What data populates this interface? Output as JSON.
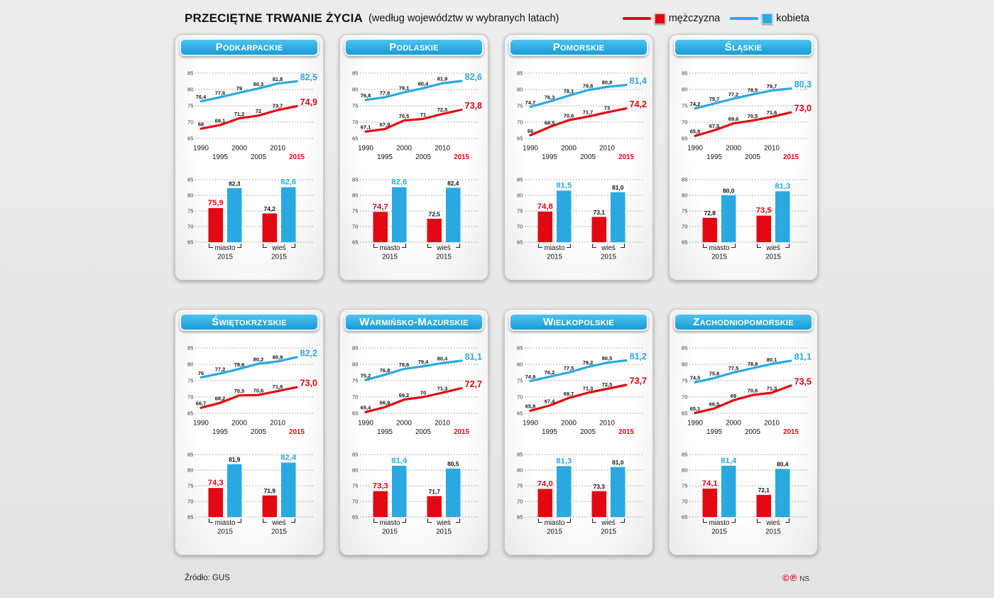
{
  "header": {
    "title": "PRZECIĘTNE TRWANIE ŻYCIA",
    "subtitle": "(według województw w wybranych latach)"
  },
  "legend": {
    "items": [
      {
        "key": "male",
        "label": "mężczyzna",
        "color": "#e30613"
      },
      {
        "key": "female",
        "label": "kobieta",
        "color": "#29a9e0"
      }
    ]
  },
  "colors": {
    "male": "#e30613",
    "female": "#29a9e0",
    "header": "#29abe2"
  },
  "footer": {
    "source": "Źródło: GUS",
    "credit_symbols": "©℗",
    "credit_text": "NS"
  },
  "chart_data": [
    {
      "region": "Podkarpackie",
      "line": {
        "type": "line",
        "x": [
          1990,
          1995,
          2000,
          2005,
          2010,
          2015
        ],
        "ylim": [
          65,
          85
        ],
        "yticks": [
          65,
          70,
          75,
          80,
          85
        ],
        "series": [
          {
            "key": "female",
            "name": "kobieta",
            "values": [
              76.4,
              77.6,
              79,
              80.3,
              81.8,
              82.5
            ]
          },
          {
            "key": "male",
            "name": "mężczyzna",
            "values": [
              68,
              69.1,
              71.2,
              72,
              73.7,
              74.9
            ]
          }
        ]
      },
      "bars": {
        "type": "bar",
        "ylim": [
          65,
          85
        ],
        "yticks": [
          65,
          70,
          75,
          80,
          85
        ],
        "groups": [
          {
            "label": "miasto",
            "year": "2015",
            "male": 75.9,
            "female": 82.3
          },
          {
            "label": "wieś",
            "year": "2015",
            "male": 74.2,
            "female": 82.6
          }
        ]
      }
    },
    {
      "region": "Podlaskie",
      "line": {
        "type": "line",
        "x": [
          1990,
          1995,
          2000,
          2005,
          2010,
          2015
        ],
        "ylim": [
          65,
          85
        ],
        "yticks": [
          65,
          70,
          75,
          80,
          85
        ],
        "series": [
          {
            "key": "female",
            "name": "kobieta",
            "values": [
              76.8,
              77.6,
              79.1,
              80.4,
              81.9,
              82.6
            ]
          },
          {
            "key": "male",
            "name": "mężczyzna",
            "values": [
              67.1,
              67.9,
              70.5,
              71,
              72.5,
              73.8
            ]
          }
        ]
      },
      "bars": {
        "type": "bar",
        "ylim": [
          65,
          85
        ],
        "yticks": [
          65,
          70,
          75,
          80,
          85
        ],
        "groups": [
          {
            "label": "miasto",
            "year": "2015",
            "male": 74.7,
            "female": 82.6
          },
          {
            "label": "wieś",
            "year": "2015",
            "male": 72.5,
            "female": 82.4
          }
        ]
      }
    },
    {
      "region": "Pomorskie",
      "line": {
        "type": "line",
        "x": [
          1990,
          1995,
          2000,
          2005,
          2010,
          2015
        ],
        "ylim": [
          65,
          85
        ],
        "yticks": [
          65,
          70,
          75,
          80,
          85
        ],
        "series": [
          {
            "key": "female",
            "name": "kobieta",
            "values": [
              74.7,
              76.3,
              78.1,
              79.8,
              80.8,
              81.4
            ]
          },
          {
            "key": "male",
            "name": "mężczyzna",
            "values": [
              66,
              68.5,
              70.6,
              71.7,
              73,
              74.2
            ]
          }
        ]
      },
      "bars": {
        "type": "bar",
        "ylim": [
          65,
          85
        ],
        "yticks": [
          65,
          70,
          75,
          80,
          85
        ],
        "groups": [
          {
            "label": "miasto",
            "year": "2015",
            "male": 74.8,
            "female": 81.5
          },
          {
            "label": "wieś",
            "year": "2015",
            "male": 73.1,
            "female": 81.0
          }
        ]
      }
    },
    {
      "region": "Śląskie",
      "line": {
        "type": "line",
        "x": [
          1990,
          1995,
          2000,
          2005,
          2010,
          2015
        ],
        "ylim": [
          65,
          85
        ],
        "yticks": [
          65,
          70,
          75,
          80,
          85
        ],
        "series": [
          {
            "key": "female",
            "name": "kobieta",
            "values": [
              74.2,
              75.7,
              77.2,
              78.5,
              79.7,
              80.3
            ]
          },
          {
            "key": "male",
            "name": "mężczyzna",
            "values": [
              65.8,
              67.5,
              69.6,
              70.5,
              71.6,
              73.0
            ]
          }
        ]
      },
      "bars": {
        "type": "bar",
        "ylim": [
          65,
          85
        ],
        "yticks": [
          65,
          70,
          75,
          80,
          85
        ],
        "groups": [
          {
            "label": "miasto",
            "year": "2015",
            "male": 72.8,
            "female": 80.0
          },
          {
            "label": "wieś",
            "year": "2015",
            "male": 73.5,
            "female": 81.3
          }
        ]
      }
    },
    {
      "region": "Świętokrzyskie",
      "line": {
        "type": "line",
        "x": [
          1990,
          1995,
          2000,
          2005,
          2010,
          2015
        ],
        "ylim": [
          65,
          85
        ],
        "yticks": [
          65,
          70,
          75,
          80,
          85
        ],
        "series": [
          {
            "key": "female",
            "name": "kobieta",
            "values": [
              76,
              77.2,
              78.6,
              80.2,
              80.9,
              82.2
            ]
          },
          {
            "key": "male",
            "name": "mężczyzna",
            "values": [
              66.7,
              68.2,
              70.5,
              70.6,
              71.8,
              73.0
            ]
          }
        ]
      },
      "bars": {
        "type": "bar",
        "ylim": [
          65,
          85
        ],
        "yticks": [
          65,
          70,
          75,
          80,
          85
        ],
        "groups": [
          {
            "label": "miasto",
            "year": "2015",
            "male": 74.3,
            "female": 81.9
          },
          {
            "label": "wieś",
            "year": "2015",
            "male": 71.9,
            "female": 82.4
          }
        ]
      }
    },
    {
      "region": "Warmińsko-Mazurskie",
      "line": {
        "type": "line",
        "x": [
          1990,
          1995,
          2000,
          2005,
          2010,
          2015
        ],
        "ylim": [
          65,
          85
        ],
        "yticks": [
          65,
          70,
          75,
          80,
          85
        ],
        "series": [
          {
            "key": "female",
            "name": "kobieta",
            "values": [
              75.2,
              76.8,
              78.6,
              79.4,
              80.4,
              81.1
            ]
          },
          {
            "key": "male",
            "name": "mężczyzna",
            "values": [
              65.4,
              66.9,
              69.2,
              70,
              71.3,
              72.7
            ]
          }
        ]
      },
      "bars": {
        "type": "bar",
        "ylim": [
          65,
          85
        ],
        "yticks": [
          65,
          70,
          75,
          80,
          85
        ],
        "groups": [
          {
            "label": "miasto",
            "year": "2015",
            "male": 73.3,
            "female": 81.4
          },
          {
            "label": "wieś",
            "year": "2015",
            "male": 71.7,
            "female": 80.5
          }
        ]
      }
    },
    {
      "region": "Wielkopolskie",
      "line": {
        "type": "line",
        "x": [
          1990,
          1995,
          2000,
          2005,
          2010,
          2015
        ],
        "ylim": [
          65,
          85
        ],
        "yticks": [
          65,
          70,
          75,
          80,
          85
        ],
        "series": [
          {
            "key": "female",
            "name": "kobieta",
            "values": [
              74.9,
              76.2,
              77.5,
              79.2,
              80.5,
              81.2
            ]
          },
          {
            "key": "male",
            "name": "mężczyzna",
            "values": [
              65.8,
              67.4,
              69.7,
              71.3,
              72.5,
              73.7
            ]
          }
        ]
      },
      "bars": {
        "type": "bar",
        "ylim": [
          65,
          85
        ],
        "yticks": [
          65,
          70,
          75,
          80,
          85
        ],
        "groups": [
          {
            "label": "miasto",
            "year": "2015",
            "male": 74.0,
            "female": 81.3
          },
          {
            "label": "wieś",
            "year": "2015",
            "male": 73.3,
            "female": 81.0
          }
        ]
      }
    },
    {
      "region": "Zachodniopomorskie",
      "line": {
        "type": "line",
        "x": [
          1990,
          1995,
          2000,
          2005,
          2010,
          2015
        ],
        "ylim": [
          65,
          85
        ],
        "yticks": [
          65,
          70,
          75,
          80,
          85
        ],
        "series": [
          {
            "key": "female",
            "name": "kobieta",
            "values": [
              74.5,
              75.8,
              77.5,
              78.8,
              80.1,
              81.1
            ]
          },
          {
            "key": "male",
            "name": "mężczyzna",
            "values": [
              65.1,
              66.5,
              69,
              70.6,
              71.3,
              73.5
            ]
          }
        ]
      },
      "bars": {
        "type": "bar",
        "ylim": [
          65,
          85
        ],
        "yticks": [
          65,
          70,
          75,
          80,
          85
        ],
        "groups": [
          {
            "label": "miasto",
            "year": "2015",
            "male": 74.1,
            "female": 81.4
          },
          {
            "label": "wieś",
            "year": "2015",
            "male": 72.1,
            "female": 80.4
          }
        ]
      }
    }
  ]
}
